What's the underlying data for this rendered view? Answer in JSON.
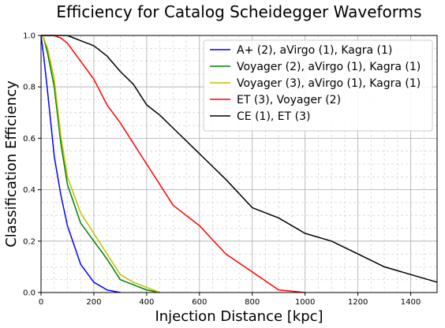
{
  "chart_data": {
    "type": "line",
    "title": "Efficiency for Catalog Scheidegger Waveforms",
    "xlabel": "Injection Distance [kpc]",
    "ylabel": "Classification Efficiency",
    "xlim": [
      0,
      1500
    ],
    "ylim": [
      0,
      1.0
    ],
    "xticks": [
      0,
      200,
      400,
      600,
      800,
      1000,
      1200,
      1400
    ],
    "xtick_labels": [
      "0",
      "200",
      "400",
      "600",
      "800",
      "1000",
      "1200",
      "1400"
    ],
    "yticks": [
      0,
      0.2,
      0.4,
      0.6,
      0.8,
      1.0
    ],
    "ytick_labels": [
      "0.0",
      "0.2",
      "0.4",
      "0.6",
      "0.8",
      "1.0"
    ],
    "grid": "major solid, minor dashed",
    "legend_position": "top-right",
    "series": [
      {
        "name": "A+ (2), aVirgo (1), Kagra (1)",
        "color": "#0000ff",
        "x": [
          0,
          10,
          25,
          50,
          75,
          100,
          150,
          200,
          250,
          300
        ],
        "y": [
          1.0,
          0.92,
          0.78,
          0.53,
          0.38,
          0.26,
          0.11,
          0.04,
          0.01,
          0.0
        ]
      },
      {
        "name": "Voyager (2), aVirgo (1), Kagra (1)",
        "color": "#008000",
        "x": [
          0,
          10,
          25,
          50,
          75,
          100,
          150,
          200,
          250,
          300,
          350,
          400,
          450
        ],
        "y": [
          1.0,
          0.99,
          0.93,
          0.8,
          0.58,
          0.42,
          0.27,
          0.2,
          0.13,
          0.05,
          0.03,
          0.01,
          0.0
        ]
      },
      {
        "name": "Voyager (3), aVirgo (1), Kagra (1)",
        "color": "#bfbf00",
        "x": [
          0,
          10,
          25,
          50,
          75,
          100,
          150,
          200,
          250,
          300,
          350,
          400,
          450
        ],
        "y": [
          1.0,
          0.99,
          0.95,
          0.83,
          0.61,
          0.45,
          0.31,
          0.23,
          0.15,
          0.07,
          0.04,
          0.02,
          0.0
        ]
      },
      {
        "name": "ET (3), Voyager (2)",
        "color": "#ff0000",
        "x": [
          0,
          50,
          75,
          100,
          150,
          200,
          250,
          300,
          400,
          500,
          600,
          700,
          800,
          900,
          1000
        ],
        "y": [
          1.0,
          1.0,
          0.99,
          0.97,
          0.9,
          0.83,
          0.73,
          0.66,
          0.5,
          0.34,
          0.26,
          0.15,
          0.08,
          0.01,
          0.0
        ]
      },
      {
        "name": "CE (1), ET (3)",
        "color": "#000000",
        "x": [
          0,
          100,
          150,
          200,
          250,
          300,
          350,
          400,
          450,
          500,
          600,
          700,
          800,
          900,
          1000,
          1100,
          1200,
          1300,
          1400,
          1500
        ],
        "y": [
          1.0,
          1.0,
          0.98,
          0.96,
          0.92,
          0.86,
          0.81,
          0.73,
          0.69,
          0.64,
          0.54,
          0.44,
          0.33,
          0.29,
          0.23,
          0.2,
          0.15,
          0.1,
          0.07,
          0.04
        ]
      }
    ]
  }
}
